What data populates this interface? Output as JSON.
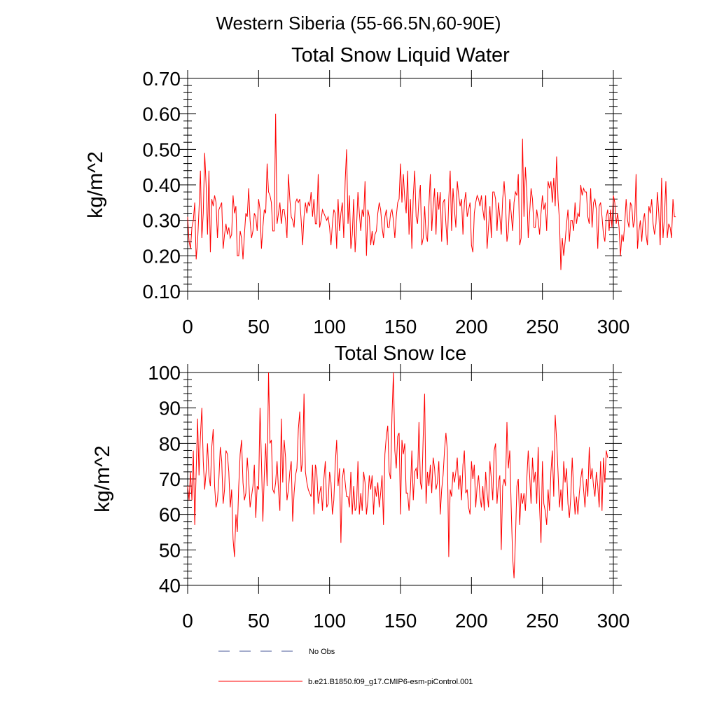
{
  "figure": {
    "title": "Western Siberia (55-66.5N,60-90E)"
  },
  "legend": {
    "entries": [
      {
        "label": "No Obs",
        "style": "dashed",
        "color": "#4a5a9a"
      },
      {
        "label": "b.e21.B1850.f09_g17.CMIP6-esm-piControl.001",
        "style": "solid",
        "color": "#ff0000"
      }
    ]
  },
  "chart_data": [
    {
      "type": "line",
      "title": "Total Snow Liquid Water",
      "xlabel": "",
      "ylabel": "kg/m^2",
      "xlim": [
        0,
        300
      ],
      "ylim": [
        0.1,
        0.7
      ],
      "x_ticks": [
        0,
        50,
        100,
        150,
        200,
        250,
        300
      ],
      "x_tick_labels": [
        "0",
        "50",
        "100",
        "150",
        "200",
        "250",
        "300"
      ],
      "y_ticks": [
        0.1,
        0.2,
        0.3,
        0.4,
        0.5,
        0.6,
        0.7
      ],
      "y_tick_labels": [
        "0.10",
        "0.20",
        "0.30",
        "0.40",
        "0.50",
        "0.60",
        "0.70"
      ],
      "grid": false,
      "series": [
        {
          "name": "b.e21.B1850.f09_g17.CMIP6-esm-piControl.001",
          "color": "#ff0000",
          "x_start": 0,
          "x_step": 1,
          "values": [
            0.31,
            0.24,
            0.22,
            0.28,
            0.3,
            0.35,
            0.19,
            0.24,
            0.33,
            0.44,
            0.25,
            0.32,
            0.49,
            0.4,
            0.26,
            0.44,
            0.21,
            0.36,
            0.34,
            0.37,
            0.35,
            0.25,
            0.33,
            0.34,
            0.35,
            0.22,
            0.26,
            0.29,
            0.26,
            0.28,
            0.25,
            0.26,
            0.37,
            0.32,
            0.34,
            0.2,
            0.2,
            0.27,
            0.25,
            0.19,
            0.26,
            0.32,
            0.31,
            0.39,
            0.3,
            0.25,
            0.27,
            0.32,
            0.31,
            0.27,
            0.36,
            0.33,
            0.22,
            0.28,
            0.33,
            0.32,
            0.46,
            0.38,
            0.37,
            0.35,
            0.27,
            0.27,
            0.6,
            0.29,
            0.32,
            0.35,
            0.29,
            0.33,
            0.33,
            0.3,
            0.25,
            0.43,
            0.36,
            0.31,
            0.3,
            0.28,
            0.35,
            0.36,
            0.35,
            0.36,
            0.3,
            0.23,
            0.31,
            0.35,
            0.32,
            0.35,
            0.34,
            0.38,
            0.31,
            0.36,
            0.29,
            0.29,
            0.43,
            0.28,
            0.3,
            0.33,
            0.32,
            0.31,
            0.3,
            0.31,
            0.28,
            0.23,
            0.29,
            0.33,
            0.32,
            0.22,
            0.36,
            0.27,
            0.32,
            0.35,
            0.25,
            0.41,
            0.5,
            0.29,
            0.37,
            0.22,
            0.26,
            0.36,
            0.21,
            0.28,
            0.38,
            0.32,
            0.27,
            0.33,
            0.31,
            0.41,
            0.2,
            0.33,
            0.31,
            0.23,
            0.27,
            0.23,
            0.26,
            0.27,
            0.32,
            0.35,
            0.33,
            0.28,
            0.25,
            0.31,
            0.33,
            0.28,
            0.28,
            0.32,
            0.33,
            0.3,
            0.25,
            0.31,
            0.35,
            0.36,
            0.46,
            0.35,
            0.43,
            0.36,
            0.32,
            0.44,
            0.26,
            0.36,
            0.22,
            0.37,
            0.44,
            0.31,
            0.29,
            0.36,
            0.4,
            0.23,
            0.25,
            0.34,
            0.26,
            0.24,
            0.34,
            0.43,
            0.27,
            0.34,
            0.39,
            0.26,
            0.38,
            0.33,
            0.38,
            0.24,
            0.35,
            0.36,
            0.29,
            0.23,
            0.36,
            0.44,
            0.27,
            0.39,
            0.33,
            0.28,
            0.41,
            0.37,
            0.34,
            0.36,
            0.26,
            0.35,
            0.38,
            0.31,
            0.33,
            0.35,
            0.23,
            0.21,
            0.32,
            0.35,
            0.37,
            0.36,
            0.34,
            0.37,
            0.33,
            0.3,
            0.37,
            0.22,
            0.28,
            0.34,
            0.25,
            0.38,
            0.38,
            0.36,
            0.27,
            0.35,
            0.31,
            0.26,
            0.36,
            0.41,
            0.35,
            0.24,
            0.27,
            0.36,
            0.32,
            0.27,
            0.35,
            0.38,
            0.37,
            0.43,
            0.23,
            0.25,
            0.53,
            0.31,
            0.45,
            0.38,
            0.25,
            0.32,
            0.39,
            0.36,
            0.28,
            0.28,
            0.33,
            0.3,
            0.26,
            0.32,
            0.37,
            0.33,
            0.35,
            0.27,
            0.41,
            0.39,
            0.41,
            0.35,
            0.42,
            0.34,
            0.48,
            0.36,
            0.3,
            0.16,
            0.25,
            0.2,
            0.24,
            0.29,
            0.33,
            0.24,
            0.3,
            0.3,
            0.27,
            0.35,
            0.29,
            0.32,
            0.31,
            0.4,
            0.37,
            0.39,
            0.38,
            0.38,
            0.31,
            0.29,
            0.39,
            0.28,
            0.35,
            0.36,
            0.33,
            0.22,
            0.34,
            0.35,
            0.31,
            0.26,
            0.24,
            0.31,
            0.33,
            0.27,
            0.33,
            0.28,
            0.37,
            0.35,
            0.29,
            0.32,
            0.28,
            0.2,
            0.26,
            0.24,
            0.29,
            0.36,
            0.3,
            0.28,
            0.35,
            0.34,
            0.28,
            0.3,
            0.43,
            0.22,
            0.27,
            0.3,
            0.24,
            0.3,
            0.32,
            0.26,
            0.23,
            0.34,
            0.32,
            0.36,
            0.29,
            0.26,
            0.29,
            0.38,
            0.32,
            0.23,
            0.42,
            0.25,
            0.31,
            0.41,
            0.25,
            0.29,
            0.28,
            0.25,
            0.36,
            0.31,
            0.31
          ]
        }
      ]
    },
    {
      "type": "line",
      "title": "Total Snow Ice",
      "xlabel": "",
      "ylabel": "kg/m^2",
      "xlim": [
        0,
        300
      ],
      "ylim": [
        40,
        100
      ],
      "x_ticks": [
        0,
        50,
        100,
        150,
        200,
        250,
        300
      ],
      "x_tick_labels": [
        "0",
        "50",
        "100",
        "150",
        "200",
        "250",
        "300"
      ],
      "y_ticks": [
        40,
        50,
        60,
        70,
        80,
        90,
        100
      ],
      "y_tick_labels": [
        "40",
        "50",
        "60",
        "70",
        "80",
        "90",
        "100"
      ],
      "grid": false,
      "series": [
        {
          "name": "b.e21.B1850.f09_g17.CMIP6-esm-piControl.001",
          "color": "#ff0000",
          "x_start": 0,
          "x_step": 1,
          "values": [
            68,
            64,
            72,
            64,
            78,
            57,
            72,
            87,
            71,
            82,
            90,
            75,
            67,
            72,
            80,
            71,
            68,
            79,
            84,
            68,
            62,
            64,
            70,
            79,
            75,
            63,
            67,
            78,
            77,
            72,
            62,
            67,
            53,
            48,
            60,
            55,
            68,
            77,
            81,
            69,
            64,
            66,
            76,
            70,
            62,
            65,
            68,
            74,
            59,
            68,
            67,
            90,
            75,
            58,
            71,
            80,
            68,
            100,
            80,
            81,
            67,
            66,
            69,
            75,
            67,
            61,
            87,
            69,
            81,
            76,
            64,
            67,
            72,
            75,
            58,
            66,
            71,
            73,
            84,
            89,
            72,
            75,
            94,
            72,
            69,
            67,
            66,
            65,
            74,
            60,
            74,
            72,
            63,
            66,
            68,
            61,
            70,
            75,
            62,
            63,
            72,
            69,
            60,
            64,
            74,
            81,
            68,
            73,
            52,
            70,
            73,
            69,
            65,
            65,
            62,
            72,
            60,
            68,
            61,
            62,
            75,
            60,
            66,
            61,
            72,
            69,
            60,
            64,
            71,
            67,
            71,
            60,
            68,
            65,
            69,
            62,
            66,
            71,
            57,
            77,
            82,
            85,
            72,
            70,
            88,
            100,
            78,
            73,
            82,
            83,
            60,
            81,
            77,
            80,
            66,
            66,
            61,
            67,
            78,
            64,
            72,
            73,
            70,
            86,
            69,
            67,
            82,
            94,
            63,
            72,
            68,
            74,
            66,
            76,
            73,
            67,
            69,
            75,
            60,
            67,
            71,
            78,
            83,
            78,
            48,
            67,
            65,
            72,
            69,
            72,
            76,
            67,
            71,
            64,
            74,
            78,
            66,
            67,
            62,
            60,
            75,
            70,
            74,
            62,
            68,
            71,
            65,
            62,
            68,
            61,
            72,
            66,
            62,
            75,
            70,
            64,
            78,
            80,
            63,
            69,
            71,
            50,
            68,
            70,
            68,
            86,
            73,
            78,
            62,
            48,
            42,
            53,
            68,
            70,
            57,
            66,
            63,
            66,
            61,
            70,
            78,
            71,
            63,
            76,
            69,
            72,
            63,
            79,
            62,
            52,
            75,
            63,
            61,
            57,
            67,
            61,
            72,
            78,
            65,
            88,
            81,
            72,
            62,
            67,
            61,
            75,
            69,
            73,
            63,
            59,
            65,
            76,
            67,
            60,
            65,
            60,
            66,
            70,
            73,
            67,
            62,
            70,
            65,
            79,
            70,
            73,
            68,
            65,
            72,
            68,
            62,
            75,
            61,
            76,
            69,
            78,
            76
          ]
        }
      ]
    }
  ]
}
